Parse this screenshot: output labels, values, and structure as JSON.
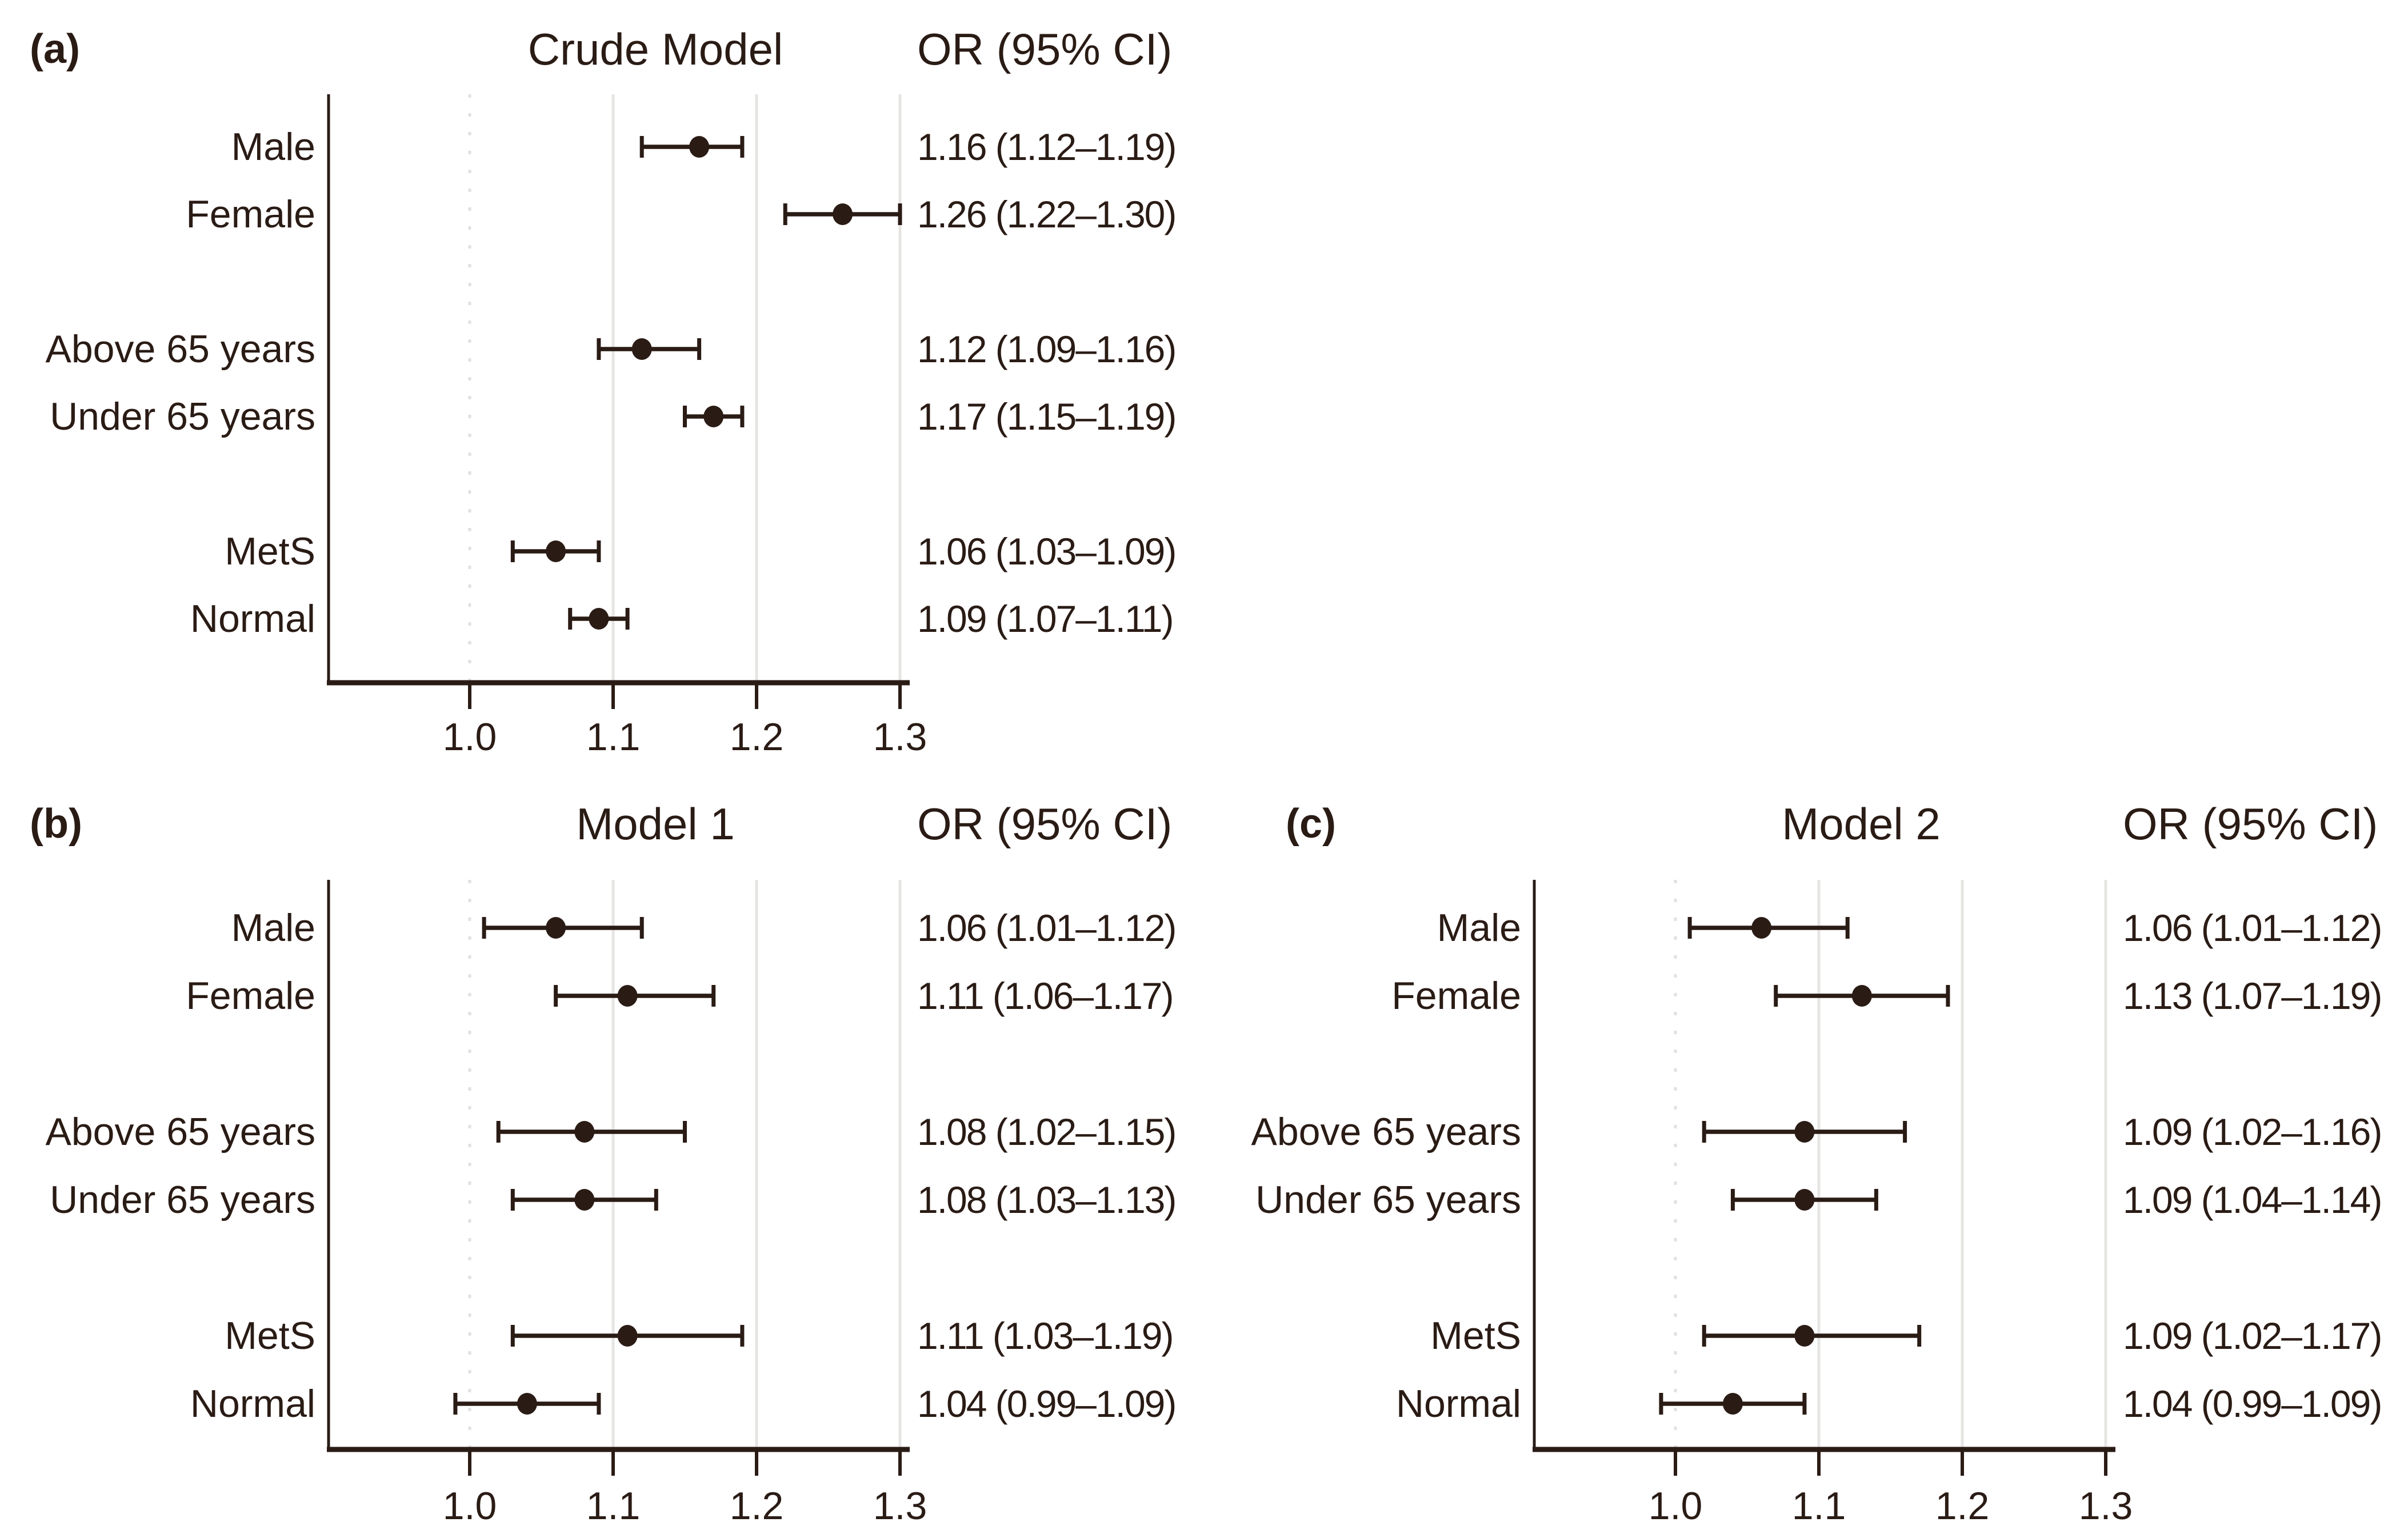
{
  "figure": {
    "kind": "three-panel forest plot of odds ratios",
    "colors": {
      "ink": "#2a1b15",
      "gridline": "#e7e5e3",
      "reference_dots": "#e2e0de",
      "background": "#ffffff"
    }
  },
  "axis": {
    "tick_labels": [
      "1.0",
      "1.1",
      "1.2",
      "1.3"
    ],
    "tick_values": [
      1.0,
      1.1,
      1.2,
      1.3
    ],
    "reference_value": 1.0,
    "solid_gridline_values": [
      1.1,
      1.2,
      1.3
    ],
    "xlim": [
      0.9,
      1.3
    ],
    "grid": "on"
  },
  "chart_data": [
    {
      "type": "scatter",
      "subtype": "forest-plot",
      "panel_label": "(a)",
      "title": "Crude Model",
      "or_header": "OR (95% CI)",
      "xlabel": "",
      "ylabel": "",
      "xlim": [
        0.9,
        1.3
      ],
      "legend": "none",
      "rows": [
        {
          "label": "Male",
          "or": 1.16,
          "ci_low": 1.12,
          "ci_high": 1.19,
          "or_text": "1.16 (1.12–1.19)",
          "group": 0
        },
        {
          "label": "Female",
          "or": 1.26,
          "ci_low": 1.22,
          "ci_high": 1.3,
          "or_text": "1.26 (1.22–1.30)",
          "group": 0
        },
        {
          "label": "Above 65 years",
          "or": 1.12,
          "ci_low": 1.09,
          "ci_high": 1.16,
          "or_text": "1.12 (1.09–1.16)",
          "group": 1
        },
        {
          "label": "Under 65 years",
          "or": 1.17,
          "ci_low": 1.15,
          "ci_high": 1.19,
          "or_text": "1.17 (1.15–1.19)",
          "group": 1
        },
        {
          "label": "MetS",
          "or": 1.06,
          "ci_low": 1.03,
          "ci_high": 1.09,
          "or_text": "1.06 (1.03–1.09)",
          "group": 2
        },
        {
          "label": "Normal",
          "or": 1.09,
          "ci_low": 1.07,
          "ci_high": 1.11,
          "or_text": "1.09 (1.07–1.11)",
          "group": 2
        }
      ]
    },
    {
      "type": "scatter",
      "subtype": "forest-plot",
      "panel_label": "(b)",
      "title": "Model 1",
      "or_header": "OR (95% CI)",
      "xlabel": "",
      "ylabel": "",
      "xlim": [
        0.9,
        1.3
      ],
      "legend": "none",
      "rows": [
        {
          "label": "Male",
          "or": 1.06,
          "ci_low": 1.01,
          "ci_high": 1.12,
          "or_text": "1.06 (1.01–1.12)",
          "group": 0
        },
        {
          "label": "Female",
          "or": 1.11,
          "ci_low": 1.06,
          "ci_high": 1.17,
          "or_text": "1.11 (1.06–1.17)",
          "group": 0
        },
        {
          "label": "Above 65 years",
          "or": 1.08,
          "ci_low": 1.02,
          "ci_high": 1.15,
          "or_text": "1.08 (1.02–1.15)",
          "group": 1
        },
        {
          "label": "Under 65 years",
          "or": 1.08,
          "ci_low": 1.03,
          "ci_high": 1.13,
          "or_text": "1.08 (1.03–1.13)",
          "group": 1
        },
        {
          "label": "MetS",
          "or": 1.11,
          "ci_low": 1.03,
          "ci_high": 1.19,
          "or_text": "1.11 (1.03–1.19)",
          "group": 2
        },
        {
          "label": "Normal",
          "or": 1.04,
          "ci_low": 0.99,
          "ci_high": 1.09,
          "or_text": "1.04 (0.99–1.09)",
          "group": 2
        }
      ]
    },
    {
      "type": "scatter",
      "subtype": "forest-plot",
      "panel_label": "(c)",
      "title": "Model 2",
      "or_header": "OR (95% CI)",
      "xlabel": "",
      "ylabel": "",
      "xlim": [
        0.9,
        1.3
      ],
      "legend": "none",
      "rows": [
        {
          "label": "Male",
          "or": 1.06,
          "ci_low": 1.01,
          "ci_high": 1.12,
          "or_text": "1.06 (1.01–1.12)",
          "group": 0
        },
        {
          "label": "Female",
          "or": 1.13,
          "ci_low": 1.07,
          "ci_high": 1.19,
          "or_text": "1.13 (1.07–1.19)",
          "group": 0
        },
        {
          "label": "Above 65 years",
          "or": 1.09,
          "ci_low": 1.02,
          "ci_high": 1.16,
          "or_text": "1.09 (1.02–1.16)",
          "group": 1
        },
        {
          "label": "Under 65 years",
          "or": 1.09,
          "ci_low": 1.04,
          "ci_high": 1.14,
          "or_text": "1.09 (1.04–1.14)",
          "group": 1
        },
        {
          "label": "MetS",
          "or": 1.09,
          "ci_low": 1.02,
          "ci_high": 1.17,
          "or_text": "1.09 (1.02–1.17)",
          "group": 2
        },
        {
          "label": "Normal",
          "or": 1.04,
          "ci_low": 0.99,
          "ci_high": 1.09,
          "or_text": "1.04 (0.99–1.09)",
          "group": 2
        }
      ]
    }
  ]
}
